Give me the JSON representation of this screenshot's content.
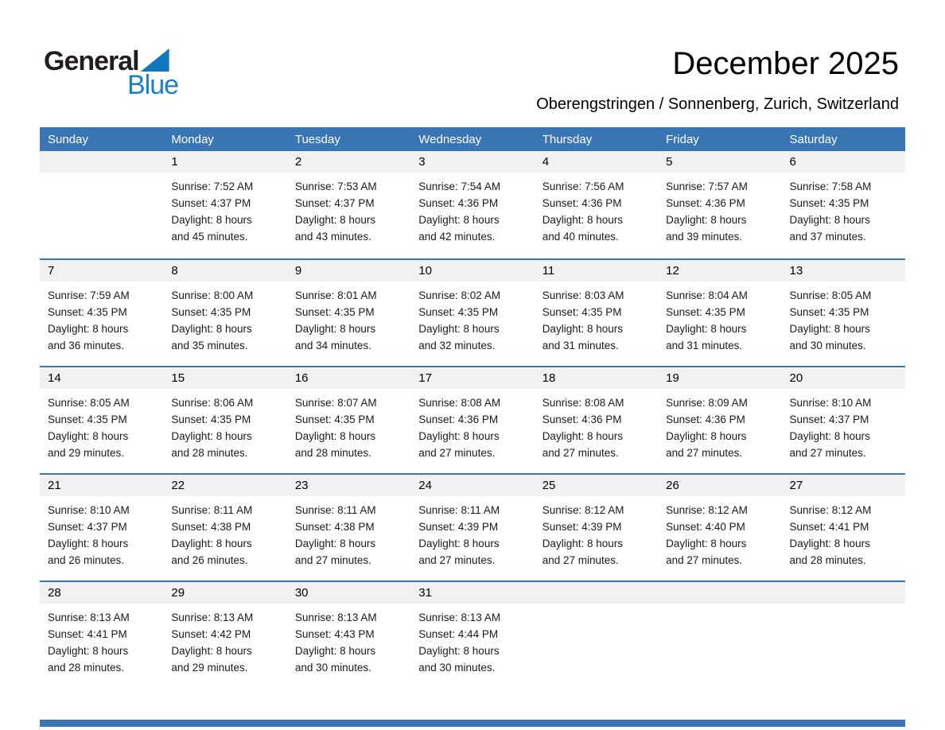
{
  "logo": {
    "general": "General",
    "blue": "Blue"
  },
  "header": {
    "title": "December 2025",
    "subtitle": "Oberengstringen / Sonnenberg, Zurich, Switzerland"
  },
  "colors": {
    "header_bg": "#3a76b4",
    "row_line": "#3a76b4",
    "number_band_bg": "#f1f1f1",
    "bottom_bar": "#3a76b4",
    "logo_blue": "#1b80c4"
  },
  "calendar": {
    "weekdays": [
      "Sunday",
      "Monday",
      "Tuesday",
      "Wednesday",
      "Thursday",
      "Friday",
      "Saturday"
    ],
    "labels": {
      "sunrise_label": "Sunrise:",
      "sunset_label": "Sunset:",
      "daylight_hours_line": "Daylight: 8 hours",
      "minutes_prefix": "and",
      "minutes_suffix": "minutes."
    },
    "weeks": [
      [
        null,
        {
          "day": "1",
          "sunrise": "7:52 AM",
          "sunset": "4:37 PM",
          "daylight_minutes": "45"
        },
        {
          "day": "2",
          "sunrise": "7:53 AM",
          "sunset": "4:37 PM",
          "daylight_minutes": "43"
        },
        {
          "day": "3",
          "sunrise": "7:54 AM",
          "sunset": "4:36 PM",
          "daylight_minutes": "42"
        },
        {
          "day": "4",
          "sunrise": "7:56 AM",
          "sunset": "4:36 PM",
          "daylight_minutes": "40"
        },
        {
          "day": "5",
          "sunrise": "7:57 AM",
          "sunset": "4:36 PM",
          "daylight_minutes": "39"
        },
        {
          "day": "6",
          "sunrise": "7:58 AM",
          "sunset": "4:35 PM",
          "daylight_minutes": "37"
        }
      ],
      [
        {
          "day": "7",
          "sunrise": "7:59 AM",
          "sunset": "4:35 PM",
          "daylight_minutes": "36"
        },
        {
          "day": "8",
          "sunrise": "8:00 AM",
          "sunset": "4:35 PM",
          "daylight_minutes": "35"
        },
        {
          "day": "9",
          "sunrise": "8:01 AM",
          "sunset": "4:35 PM",
          "daylight_minutes": "34"
        },
        {
          "day": "10",
          "sunrise": "8:02 AM",
          "sunset": "4:35 PM",
          "daylight_minutes": "32"
        },
        {
          "day": "11",
          "sunrise": "8:03 AM",
          "sunset": "4:35 PM",
          "daylight_minutes": "31"
        },
        {
          "day": "12",
          "sunrise": "8:04 AM",
          "sunset": "4:35 PM",
          "daylight_minutes": "31"
        },
        {
          "day": "13",
          "sunrise": "8:05 AM",
          "sunset": "4:35 PM",
          "daylight_minutes": "30"
        }
      ],
      [
        {
          "day": "14",
          "sunrise": "8:05 AM",
          "sunset": "4:35 PM",
          "daylight_minutes": "29"
        },
        {
          "day": "15",
          "sunrise": "8:06 AM",
          "sunset": "4:35 PM",
          "daylight_minutes": "28"
        },
        {
          "day": "16",
          "sunrise": "8:07 AM",
          "sunset": "4:35 PM",
          "daylight_minutes": "28"
        },
        {
          "day": "17",
          "sunrise": "8:08 AM",
          "sunset": "4:36 PM",
          "daylight_minutes": "27"
        },
        {
          "day": "18",
          "sunrise": "8:08 AM",
          "sunset": "4:36 PM",
          "daylight_minutes": "27"
        },
        {
          "day": "19",
          "sunrise": "8:09 AM",
          "sunset": "4:36 PM",
          "daylight_minutes": "27"
        },
        {
          "day": "20",
          "sunrise": "8:10 AM",
          "sunset": "4:37 PM",
          "daylight_minutes": "27"
        }
      ],
      [
        {
          "day": "21",
          "sunrise": "8:10 AM",
          "sunset": "4:37 PM",
          "daylight_minutes": "26"
        },
        {
          "day": "22",
          "sunrise": "8:11 AM",
          "sunset": "4:38 PM",
          "daylight_minutes": "26"
        },
        {
          "day": "23",
          "sunrise": "8:11 AM",
          "sunset": "4:38 PM",
          "daylight_minutes": "27"
        },
        {
          "day": "24",
          "sunrise": "8:11 AM",
          "sunset": "4:39 PM",
          "daylight_minutes": "27"
        },
        {
          "day": "25",
          "sunrise": "8:12 AM",
          "sunset": "4:39 PM",
          "daylight_minutes": "27"
        },
        {
          "day": "26",
          "sunrise": "8:12 AM",
          "sunset": "4:40 PM",
          "daylight_minutes": "27"
        },
        {
          "day": "27",
          "sunrise": "8:12 AM",
          "sunset": "4:41 PM",
          "daylight_minutes": "28"
        }
      ],
      [
        {
          "day": "28",
          "sunrise": "8:13 AM",
          "sunset": "4:41 PM",
          "daylight_minutes": "28"
        },
        {
          "day": "29",
          "sunrise": "8:13 AM",
          "sunset": "4:42 PM",
          "daylight_minutes": "29"
        },
        {
          "day": "30",
          "sunrise": "8:13 AM",
          "sunset": "4:43 PM",
          "daylight_minutes": "30"
        },
        {
          "day": "31",
          "sunrise": "8:13 AM",
          "sunset": "4:44 PM",
          "daylight_minutes": "30"
        },
        null,
        null,
        null
      ]
    ]
  }
}
